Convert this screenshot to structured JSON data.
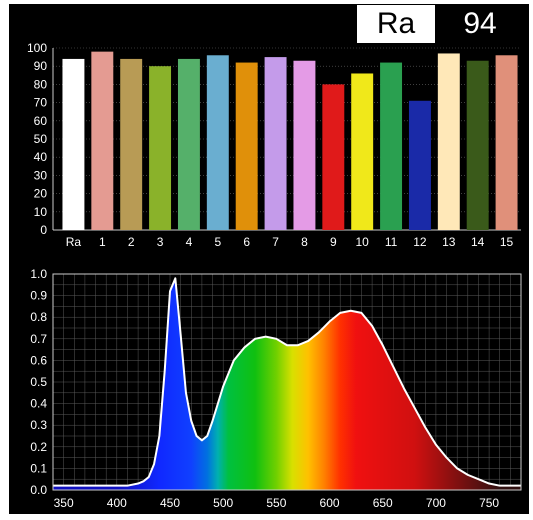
{
  "ra_label": "Ra",
  "ra_value": "94",
  "chart_data": [
    {
      "type": "bar",
      "categories": [
        "Ra",
        "1",
        "2",
        "3",
        "4",
        "5",
        "6",
        "7",
        "8",
        "9",
        "10",
        "11",
        "12",
        "13",
        "14",
        "15"
      ],
      "values": [
        94,
        98,
        94,
        90,
        94,
        96,
        92,
        95,
        93,
        80,
        86,
        92,
        71,
        97,
        93,
        96
      ],
      "colors": [
        "#ffffff",
        "#e49b92",
        "#b89b55",
        "#8ab22a",
        "#55b06a",
        "#6aaed0",
        "#e0900a",
        "#c49bea",
        "#e49be6",
        "#e01a1a",
        "#f0e81a",
        "#2aa050",
        "#1a2aa8",
        "#ffe8b8",
        "#3a5a1a",
        "#e0907a"
      ],
      "ylim": [
        0,
        100
      ],
      "yticks": [
        0,
        10,
        20,
        30,
        40,
        50,
        60,
        70,
        80,
        90,
        100
      ],
      "grid": true
    },
    {
      "type": "area",
      "x": [
        340,
        360,
        380,
        400,
        410,
        420,
        425,
        430,
        435,
        440,
        445,
        450,
        455,
        460,
        465,
        470,
        475,
        480,
        485,
        490,
        500,
        510,
        520,
        530,
        540,
        550,
        560,
        570,
        580,
        590,
        600,
        610,
        620,
        630,
        640,
        650,
        660,
        670,
        680,
        690,
        700,
        710,
        720,
        730,
        740,
        750,
        760,
        770,
        780
      ],
      "y": [
        0.02,
        0.02,
        0.02,
        0.02,
        0.02,
        0.03,
        0.04,
        0.06,
        0.12,
        0.25,
        0.55,
        0.92,
        0.98,
        0.72,
        0.45,
        0.32,
        0.25,
        0.23,
        0.25,
        0.32,
        0.48,
        0.6,
        0.66,
        0.7,
        0.71,
        0.7,
        0.67,
        0.67,
        0.69,
        0.73,
        0.78,
        0.82,
        0.83,
        0.82,
        0.76,
        0.67,
        0.57,
        0.47,
        0.38,
        0.29,
        0.21,
        0.15,
        0.1,
        0.07,
        0.05,
        0.03,
        0.02,
        0.02,
        0.02
      ],
      "xlim": [
        340,
        780
      ],
      "ylim": [
        0.0,
        1.0
      ],
      "xticks": [
        350,
        400,
        450,
        500,
        550,
        600,
        650,
        700,
        750
      ],
      "yticks": [
        "0.0",
        "0.1",
        "0.2",
        "0.3",
        "0.4",
        "0.5",
        "0.6",
        "0.7",
        "0.8",
        "0.9",
        "1.0"
      ],
      "fill": "spectrum",
      "grid": true
    }
  ]
}
